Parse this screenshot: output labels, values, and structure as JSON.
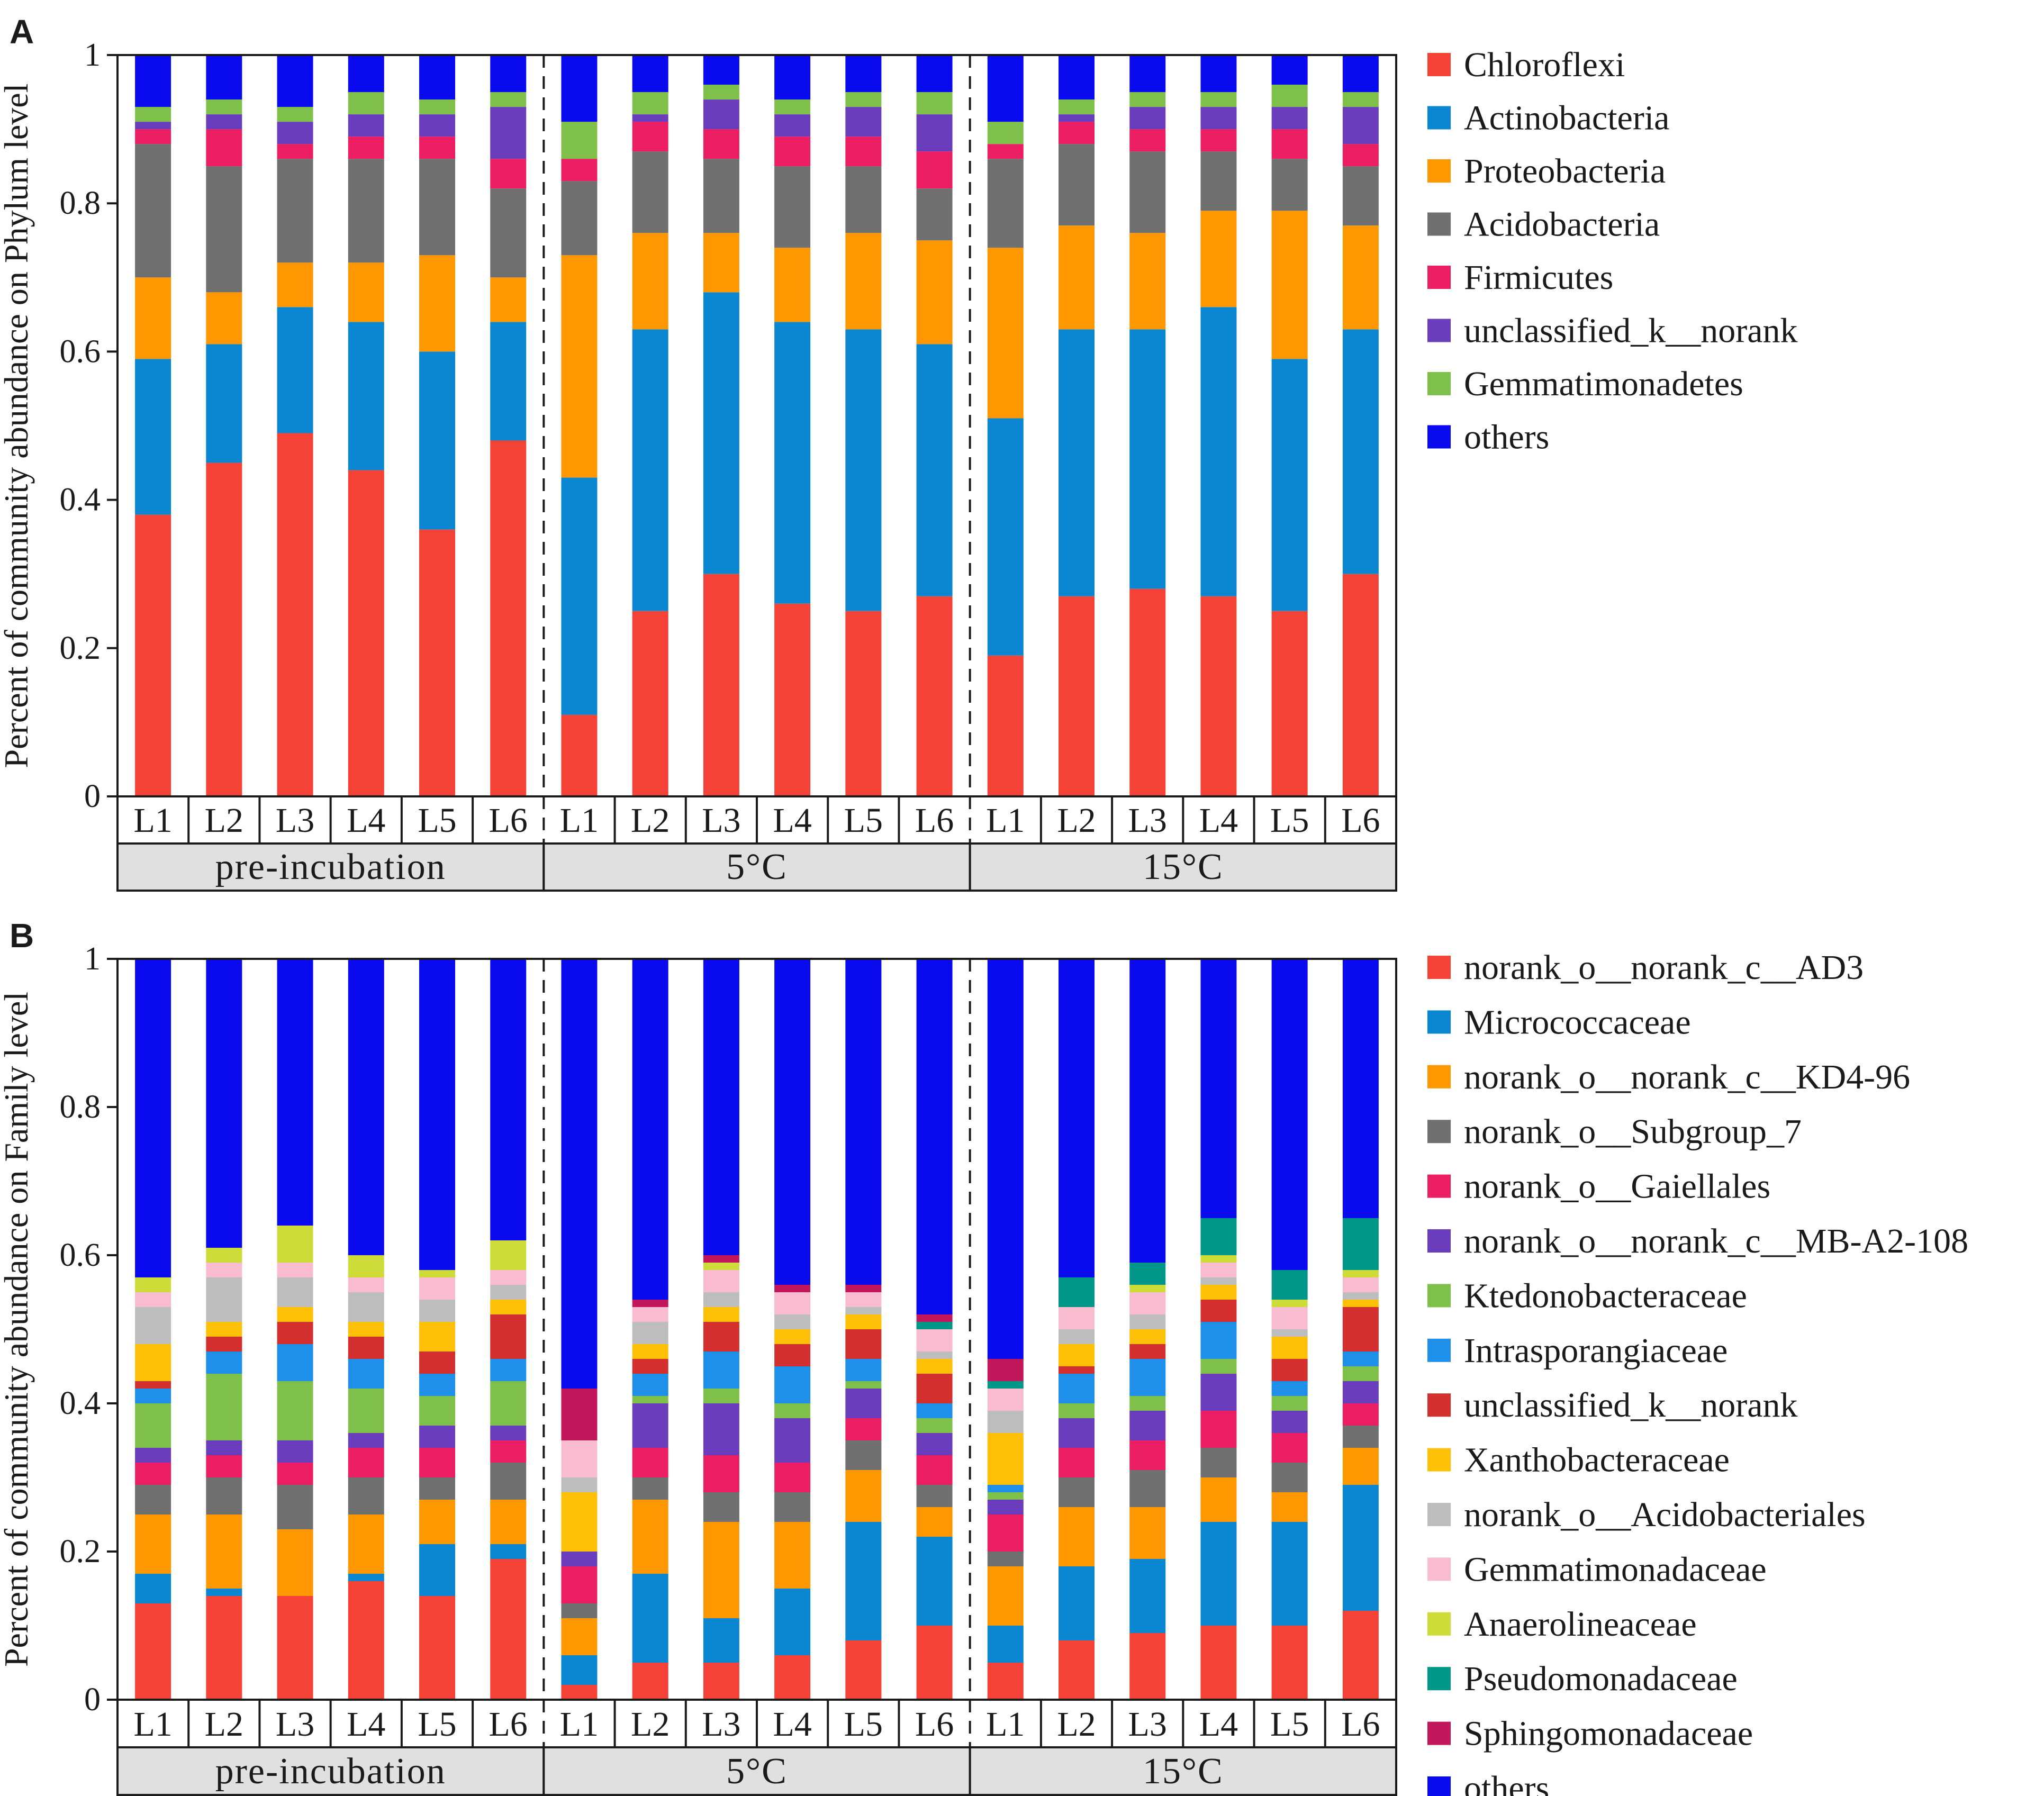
{
  "chart_data": [
    {
      "panel_label": "A",
      "type": "bar",
      "stacked": true,
      "ylabel": "Percent of community abundance on Phylum level",
      "ylim": [
        0,
        1
      ],
      "yticks": [
        "0",
        "0.2",
        "0.4",
        "0.6",
        "0.8",
        "1"
      ],
      "groups": [
        {
          "name": "pre-incubation",
          "categories": [
            "L1",
            "L2",
            "L3",
            "L4",
            "L5",
            "L6"
          ]
        },
        {
          "name": "5°C",
          "categories": [
            "L1",
            "L2",
            "L3",
            "L4",
            "L5",
            "L6"
          ]
        },
        {
          "name": "15°C",
          "categories": [
            "L1",
            "L2",
            "L3",
            "L4",
            "L5",
            "L6"
          ]
        }
      ],
      "legend_position": "right",
      "series": [
        {
          "name": "Chloroflexi",
          "color": "#f44336",
          "values": [
            0.38,
            0.45,
            0.49,
            0.44,
            0.36,
            0.48,
            0.11,
            0.25,
            0.3,
            0.26,
            0.25,
            0.27,
            0.19,
            0.27,
            0.28,
            0.27,
            0.25,
            0.3
          ]
        },
        {
          "name": "Actinobacteria",
          "color": "#0a87d0",
          "values": [
            0.21,
            0.16,
            0.17,
            0.2,
            0.24,
            0.16,
            0.32,
            0.38,
            0.38,
            0.38,
            0.38,
            0.34,
            0.32,
            0.36,
            0.35,
            0.39,
            0.34,
            0.33
          ]
        },
        {
          "name": "Proteobacteria",
          "color": "#ff9800",
          "values": [
            0.11,
            0.07,
            0.06,
            0.08,
            0.13,
            0.06,
            0.3,
            0.13,
            0.08,
            0.1,
            0.13,
            0.14,
            0.23,
            0.14,
            0.13,
            0.13,
            0.2,
            0.14
          ]
        },
        {
          "name": "Acidobacteria",
          "color": "#707070",
          "values": [
            0.18,
            0.17,
            0.14,
            0.14,
            0.13,
            0.12,
            0.1,
            0.11,
            0.1,
            0.11,
            0.09,
            0.07,
            0.12,
            0.11,
            0.11,
            0.08,
            0.07,
            0.08
          ]
        },
        {
          "name": "Firmicutes",
          "color": "#eb1e63",
          "values": [
            0.02,
            0.05,
            0.02,
            0.03,
            0.03,
            0.04,
            0.03,
            0.04,
            0.04,
            0.04,
            0.04,
            0.05,
            0.02,
            0.03,
            0.03,
            0.03,
            0.04,
            0.03
          ]
        },
        {
          "name": "unclassified_k__norank",
          "color": "#6a3dbd",
          "values": [
            0.01,
            0.02,
            0.03,
            0.03,
            0.03,
            0.07,
            0.0,
            0.01,
            0.04,
            0.03,
            0.04,
            0.05,
            0.0,
            0.01,
            0.03,
            0.03,
            0.03,
            0.05
          ]
        },
        {
          "name": "Gemmatimonadetes",
          "color": "#7fc04a",
          "values": [
            0.02,
            0.02,
            0.02,
            0.03,
            0.02,
            0.02,
            0.05,
            0.03,
            0.02,
            0.02,
            0.02,
            0.03,
            0.03,
            0.02,
            0.02,
            0.02,
            0.03,
            0.02
          ]
        },
        {
          "name": "others",
          "color": "#0a0aef",
          "values": [
            0.07,
            0.06,
            0.05,
            0.05,
            0.05,
            0.04,
            0.08,
            0.06,
            0.04,
            0.05,
            0.05,
            0.05,
            0.08,
            0.06,
            0.05,
            0.05,
            0.05,
            0.05
          ]
        }
      ]
    },
    {
      "panel_label": "B",
      "type": "bar",
      "stacked": true,
      "ylabel": "Percent of community abundance on Family level",
      "ylim": [
        0,
        1
      ],
      "yticks": [
        "0",
        "0.2",
        "0.4",
        "0.6",
        "0.8",
        "1"
      ],
      "groups": [
        {
          "name": "pre-incubation",
          "categories": [
            "L1",
            "L2",
            "L3",
            "L4",
            "L5",
            "L6"
          ]
        },
        {
          "name": "5°C",
          "categories": [
            "L1",
            "L2",
            "L3",
            "L4",
            "L5",
            "L6"
          ]
        },
        {
          "name": "15°C",
          "categories": [
            "L1",
            "L2",
            "L3",
            "L4",
            "L5",
            "L6"
          ]
        }
      ],
      "legend_position": "right",
      "series": [
        {
          "name": "norank_o__norank_c__AD3",
          "color": "#f44336",
          "values": [
            0.13,
            0.14,
            0.14,
            0.16,
            0.14,
            0.19,
            0.02,
            0.05,
            0.05,
            0.06,
            0.08,
            0.1,
            0.05,
            0.08,
            0.09,
            0.1,
            0.1,
            0.12
          ]
        },
        {
          "name": "Micrococcaceae",
          "color": "#0a87d0",
          "values": [
            0.04,
            0.01,
            0.0,
            0.01,
            0.07,
            0.02,
            0.04,
            0.12,
            0.06,
            0.09,
            0.16,
            0.12,
            0.05,
            0.1,
            0.1,
            0.14,
            0.14,
            0.17
          ]
        },
        {
          "name": "norank_o__norank_c__KD4-96",
          "color": "#ff9800",
          "values": [
            0.08,
            0.1,
            0.09,
            0.08,
            0.06,
            0.06,
            0.05,
            0.1,
            0.13,
            0.09,
            0.07,
            0.04,
            0.08,
            0.08,
            0.07,
            0.06,
            0.04,
            0.05
          ]
        },
        {
          "name": "norank_o__Subgroup_7",
          "color": "#707070",
          "values": [
            0.04,
            0.05,
            0.06,
            0.05,
            0.03,
            0.05,
            0.02,
            0.03,
            0.04,
            0.04,
            0.04,
            0.03,
            0.02,
            0.04,
            0.05,
            0.04,
            0.04,
            0.03
          ]
        },
        {
          "name": "norank_o__Gaiellales",
          "color": "#eb1e63",
          "values": [
            0.03,
            0.03,
            0.03,
            0.04,
            0.04,
            0.03,
            0.05,
            0.04,
            0.05,
            0.04,
            0.03,
            0.04,
            0.05,
            0.04,
            0.04,
            0.05,
            0.04,
            0.03
          ]
        },
        {
          "name": "norank_o__norank_c__MB-A2-108",
          "color": "#6a3dbd",
          "values": [
            0.02,
            0.02,
            0.03,
            0.02,
            0.03,
            0.02,
            0.02,
            0.06,
            0.07,
            0.06,
            0.04,
            0.03,
            0.02,
            0.04,
            0.04,
            0.05,
            0.03,
            0.03
          ]
        },
        {
          "name": "Ktedonobacteraceae",
          "color": "#7fc04a",
          "values": [
            0.06,
            0.09,
            0.08,
            0.06,
            0.04,
            0.06,
            0.0,
            0.01,
            0.02,
            0.02,
            0.01,
            0.02,
            0.01,
            0.02,
            0.02,
            0.02,
            0.02,
            0.02
          ]
        },
        {
          "name": "Intrasporangiaceae",
          "color": "#1e90ea",
          "values": [
            0.02,
            0.03,
            0.05,
            0.04,
            0.03,
            0.03,
            0.0,
            0.03,
            0.05,
            0.05,
            0.03,
            0.02,
            0.01,
            0.04,
            0.05,
            0.05,
            0.02,
            0.02
          ]
        },
        {
          "name": "unclassified_k__norank",
          "color": "#d32f2f",
          "values": [
            0.01,
            0.02,
            0.03,
            0.03,
            0.03,
            0.06,
            0.0,
            0.02,
            0.04,
            0.03,
            0.04,
            0.04,
            0.0,
            0.01,
            0.02,
            0.03,
            0.03,
            0.06
          ]
        },
        {
          "name": "Xanthobacteraceae",
          "color": "#ffc107",
          "values": [
            0.05,
            0.02,
            0.02,
            0.02,
            0.04,
            0.02,
            0.08,
            0.02,
            0.02,
            0.02,
            0.02,
            0.02,
            0.07,
            0.03,
            0.02,
            0.02,
            0.03,
            0.01
          ]
        },
        {
          "name": "norank_o__Acidobacteriales",
          "color": "#bdbdbd",
          "values": [
            0.05,
            0.06,
            0.04,
            0.04,
            0.03,
            0.02,
            0.02,
            0.03,
            0.02,
            0.02,
            0.01,
            0.01,
            0.03,
            0.02,
            0.02,
            0.01,
            0.01,
            0.01
          ]
        },
        {
          "name": "Gemmatimonadaceae",
          "color": "#f8bbd0",
          "values": [
            0.02,
            0.02,
            0.02,
            0.02,
            0.03,
            0.02,
            0.05,
            0.02,
            0.03,
            0.03,
            0.02,
            0.03,
            0.03,
            0.03,
            0.03,
            0.02,
            0.03,
            0.02
          ]
        },
        {
          "name": "Anaerolineaceae",
          "color": "#cddc39",
          "values": [
            0.02,
            0.02,
            0.05,
            0.03,
            0.01,
            0.04,
            0.0,
            0.0,
            0.01,
            0.0,
            0.0,
            0.0,
            0.0,
            0.0,
            0.01,
            0.01,
            0.01,
            0.01
          ]
        },
        {
          "name": "Pseudomonadaceae",
          "color": "#009688",
          "values": [
            0.0,
            0.0,
            0.0,
            0.0,
            0.0,
            0.0,
            0.0,
            0.0,
            0.0,
            0.0,
            0.0,
            0.01,
            0.01,
            0.04,
            0.03,
            0.05,
            0.04,
            0.07
          ]
        },
        {
          "name": "Sphingomonadaceae",
          "color": "#c2185b",
          "values": [
            0.0,
            0.0,
            0.0,
            0.0,
            0.0,
            0.0,
            0.07,
            0.01,
            0.01,
            0.01,
            0.01,
            0.01,
            0.03,
            0.0,
            0.0,
            0.0,
            0.0,
            0.0
          ]
        },
        {
          "name": "others",
          "color": "#0a0aef",
          "values": [
            0.41,
            0.39,
            0.34,
            0.38,
            0.41,
            0.38,
            0.55,
            0.45,
            0.4,
            0.44,
            0.44,
            0.48,
            0.53,
            0.42,
            0.41,
            0.38,
            0.45,
            0.36
          ]
        }
      ]
    }
  ]
}
